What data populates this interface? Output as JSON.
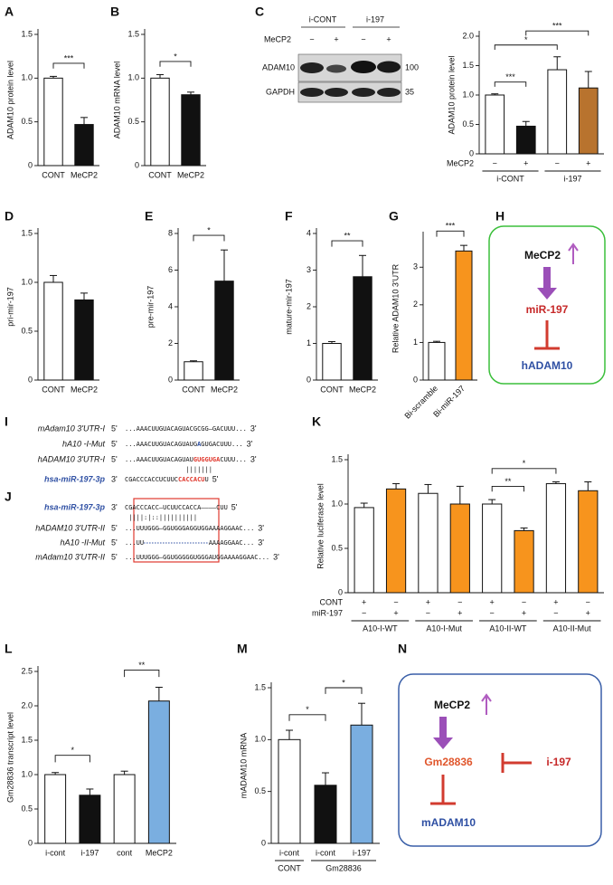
{
  "chart_data": [
    {
      "panel": "A",
      "type": "bar",
      "ylabel": "ADAM10 protein level",
      "categories": [
        "CONT",
        "MeCP2"
      ],
      "values": [
        1.0,
        0.47
      ],
      "errors": [
        0.02,
        0.08
      ],
      "colors": [
        "#ffffff",
        "#111111"
      ],
      "ylim": [
        0,
        1.5
      ],
      "yticks": [
        0,
        0.5,
        {
          "value": 1,
          "label": "1.0"
        },
        1.5
      ],
      "significance": [
        {
          "pair": [
            0,
            1
          ],
          "label": "***"
        }
      ]
    },
    {
      "panel": "B",
      "type": "bar",
      "ylabel": "ADAM10 mRNA level",
      "categories": [
        "CONT",
        "MeCP2"
      ],
      "values": [
        1.0,
        0.81
      ],
      "errors": [
        0.04,
        0.03
      ],
      "colors": [
        "#ffffff",
        "#111111"
      ],
      "ylim": [
        0,
        1.5
      ],
      "yticks": [
        0,
        0.5,
        {
          "value": 1,
          "label": "1.0"
        },
        1.5
      ],
      "significance": [
        {
          "pair": [
            0,
            1
          ],
          "label": "*"
        }
      ]
    },
    {
      "panel": "C",
      "type": "bar",
      "ylabel": "ADAM10 protein level",
      "values": [
        1.0,
        0.47,
        1.43,
        1.12
      ],
      "errors": [
        0.02,
        0.08,
        0.22,
        0.28
      ],
      "colors": [
        "#ffffff",
        "#111111",
        "#ffffff",
        "#b8732e"
      ],
      "ylim": [
        0,
        2.0
      ],
      "yticks": [
        0,
        0.5,
        {
          "value": 1,
          "label": "1.0"
        },
        1.5,
        {
          "value": 2,
          "label": "2.0"
        }
      ],
      "rows": [
        {
          "label": "MeCP2",
          "signs": [
            "−",
            "+",
            "−",
            "+"
          ]
        }
      ],
      "groups": [
        {
          "label": "i-CONT",
          "members": [
            0,
            1
          ]
        },
        {
          "label": "i-197",
          "members": [
            2,
            3
          ]
        }
      ],
      "significance": [
        {
          "pair": [
            0,
            1
          ],
          "label": "***"
        },
        {
          "pair": [
            0,
            2
          ],
          "label": "*"
        },
        {
          "pair": [
            1,
            3
          ],
          "label": "***"
        }
      ]
    },
    {
      "panel": "D",
      "type": "bar",
      "ylabel": "pri-mir-197",
      "categories": [
        "CONT",
        "MeCP2"
      ],
      "values": [
        1.0,
        0.82
      ],
      "errors": [
        0.07,
        0.07
      ],
      "colors": [
        "#ffffff",
        "#111111"
      ],
      "ylim": [
        0,
        1.5
      ],
      "yticks": [
        0,
        0.5,
        {
          "value": 1,
          "label": "1.0"
        },
        1.5
      ],
      "significance": []
    },
    {
      "panel": "E",
      "type": "bar",
      "ylabel": "pre-mir-197",
      "categories": [
        "CONT",
        "MeCP2"
      ],
      "values": [
        1.0,
        5.4
      ],
      "errors": [
        0.05,
        1.7
      ],
      "colors": [
        "#ffffff",
        "#111111"
      ],
      "ylim": [
        0,
        8
      ],
      "yticks": [
        0,
        2,
        4,
        6,
        8
      ],
      "significance": [
        {
          "pair": [
            0,
            1
          ],
          "label": "*"
        }
      ]
    },
    {
      "panel": "F",
      "type": "bar",
      "ylabel": "mature-mir-197",
      "categories": [
        "CONT",
        "MeCP2"
      ],
      "values": [
        1.0,
        2.82
      ],
      "errors": [
        0.05,
        0.58
      ],
      "colors": [
        "#ffffff",
        "#111111"
      ],
      "ylim": [
        0,
        4
      ],
      "yticks": [
        0,
        1,
        2,
        3,
        4
      ],
      "significance": [
        {
          "pair": [
            0,
            1
          ],
          "label": "**"
        }
      ]
    },
    {
      "panel": "G",
      "type": "bar",
      "ylabel": "Relative ADAM10 3'UTR",
      "categories": [
        "Bi-scramble",
        "Bi-miR-197"
      ],
      "x_label_rotation": -45,
      "values": [
        1.0,
        3.43
      ],
      "errors": [
        0.03,
        0.15
      ],
      "colors": [
        "#ffffff",
        "#f7941d"
      ],
      "ylim": [
        0,
        3.8
      ],
      "yticks": [
        0,
        1,
        2,
        3
      ],
      "significance": [
        {
          "pair": [
            0,
            1
          ],
          "label": "***"
        }
      ]
    },
    {
      "panel": "K",
      "type": "bar",
      "ylabel": "Relative luciferase level",
      "values": [
        0.96,
        1.17,
        1.12,
        1.0,
        1.0,
        0.7,
        1.23,
        1.15
      ],
      "errors": [
        0.05,
        0.06,
        0.1,
        0.2,
        0.05,
        0.03,
        0.02,
        0.1
      ],
      "colors": [
        "#ffffff",
        "#f7941d",
        "#ffffff",
        "#f7941d",
        "#ffffff",
        "#f7941d",
        "#ffffff",
        "#f7941d"
      ],
      "ylim": [
        0,
        1.5
      ],
      "yticks": [
        0,
        0.5,
        {
          "value": 1,
          "label": "1.0"
        },
        1.5
      ],
      "rows": [
        {
          "label": "CONT",
          "signs": [
            "+",
            "−",
            "+",
            "−",
            "+",
            "−",
            "+",
            "−"
          ]
        },
        {
          "label": "miR-197",
          "signs": [
            "−",
            "+",
            "−",
            "+",
            "−",
            "+",
            "−",
            "+"
          ]
        }
      ],
      "groups": [
        {
          "label": "A10-I-WT",
          "members": [
            0,
            1
          ]
        },
        {
          "label": "A10-I-Mut",
          "members": [
            2,
            3
          ]
        },
        {
          "label": "A10-II-WT",
          "members": [
            4,
            5
          ]
        },
        {
          "label": "A10-II-Mut",
          "members": [
            6,
            7
          ]
        }
      ],
      "significance": [
        {
          "pair": [
            4,
            5
          ],
          "label": "**"
        },
        {
          "pair": [
            4,
            6
          ],
          "label": "*"
        }
      ]
    },
    {
      "panel": "L",
      "type": "bar",
      "ylabel": "Gm28836 transcript level",
      "categories": [
        "i-cont",
        "i-197",
        "cont",
        "MeCP2"
      ],
      "values": [
        1.0,
        0.7,
        1.0,
        2.07
      ],
      "errors": [
        0.03,
        0.09,
        0.05,
        0.2
      ],
      "colors": [
        "#ffffff",
        "#111111",
        "#ffffff",
        "#7aaee0"
      ],
      "ylim": [
        0,
        2.5
      ],
      "yticks": [
        0,
        0.5,
        {
          "value": 1,
          "label": "1.0"
        },
        1.5,
        {
          "value": 2,
          "label": "2.0"
        },
        2.5
      ],
      "significance": [
        {
          "pair": [
            0,
            1
          ],
          "label": "*"
        },
        {
          "pair": [
            2,
            3
          ],
          "label": "**"
        }
      ]
    },
    {
      "panel": "M",
      "type": "bar",
      "ylabel": "mADAM10 mRNA",
      "categories": [
        "i-cont",
        "i-cont",
        "i-197"
      ],
      "values": [
        1.0,
        0.56,
        1.14
      ],
      "errors": [
        0.09,
        0.12,
        0.21
      ],
      "colors": [
        "#ffffff",
        "#111111",
        "#7aaee0"
      ],
      "ylim": [
        0,
        1.5
      ],
      "yticks": [
        0,
        0.5,
        {
          "value": 1,
          "label": "1.0"
        },
        1.5
      ],
      "groups": [
        {
          "label": "CONT",
          "members": [
            0
          ]
        },
        {
          "label": "Gm28836",
          "members": [
            1,
            2
          ]
        }
      ],
      "significance": [
        {
          "pair": [
            0,
            1
          ],
          "label": "*"
        },
        {
          "pair": [
            1,
            2
          ],
          "label": "*"
        }
      ]
    }
  ],
  "blot": {
    "groups": [
      "i-CONT",
      "i-197"
    ],
    "row_label": "MeCP2",
    "signs": [
      "−",
      "+",
      "−",
      "+"
    ],
    "bands": [
      "ADAM10",
      "GAPDH"
    ],
    "markers": [
      100,
      35
    ]
  },
  "diagram_H": {
    "panel": "H",
    "nodes": [
      "MeCP2",
      "miR-197",
      "hADAM10"
    ]
  },
  "diagram_N": {
    "panel": "N",
    "nodes": [
      "MeCP2",
      "Gm28836",
      "i-197",
      "mADAM10"
    ]
  },
  "sequences_I": {
    "panel": "I",
    "rows": [
      {
        "name": "mAdam10 3'UTR-I",
        "end5": "5'",
        "segments": [
          {
            "text": "...AAACUUGUACAGUACGCGG–GACUUU..."
          }
        ],
        "end3": "3'"
      },
      {
        "name": "hA10 -I-Mut",
        "end5": "5'",
        "segments": [
          {
            "text": "...AAACUUGUACAGUAUG"
          },
          {
            "text": "A",
            "color": "#2e4fa3"
          },
          {
            "text": "GUGACUUU..."
          }
        ],
        "end3": "3'"
      },
      {
        "name": "hADAM10 3'UTR-I",
        "end5": "5'",
        "segments": [
          {
            "text": "...AAACUUGUACAGUAU"
          },
          {
            "text": "GUGGUGA",
            "color": "#e03a2f"
          },
          {
            "text": "CUUU..."
          }
        ],
        "end3": "3'"
      },
      {
        "name": "hsa-miR-197-3p",
        "name_color": "#2e4fa3",
        "end5": "3'",
        "segments": [
          {
            "text": "CGACCCACCUCUUC"
          },
          {
            "text": "CACCACU",
            "color": "#e03a2f"
          },
          {
            "text": "U"
          }
        ],
        "end3": "5'"
      }
    ],
    "pairing": "|||||||"
  },
  "sequences_J": {
    "panel": "J",
    "rows": [
      {
        "name": "hsa-miR-197-3p",
        "name_color": "#2e4fa3",
        "end5": "3'",
        "segments": [
          {
            "text": "CGACCCACC–UCUUCCACCA––––CUU"
          }
        ],
        "end3": "5'"
      },
      {
        "name": "hADAM10 3'UTR-II",
        "end5": "5'",
        "segments": [
          {
            "text": "...UUUGGG–GGUGGGAGGUGGAAAAGGAAC..."
          }
        ],
        "end3": "3'"
      },
      {
        "name": "hA10 -II-Mut",
        "end5": "5'",
        "segments": [
          {
            "text": "...UU"
          },
          {
            "text": "AAAAGGAAC..."
          }
        ],
        "end3": "3'"
      },
      {
        "name": "mAdam10 3'UTR-II",
        "end5": "5'",
        "segments": [
          {
            "text": "...UUUGGG–GGUGGGGGUGGGAUGGAAAAGGAAC..."
          }
        ],
        "end3": "3'"
      }
    ],
    "pairing": "||||:|::||||||||||"
  }
}
